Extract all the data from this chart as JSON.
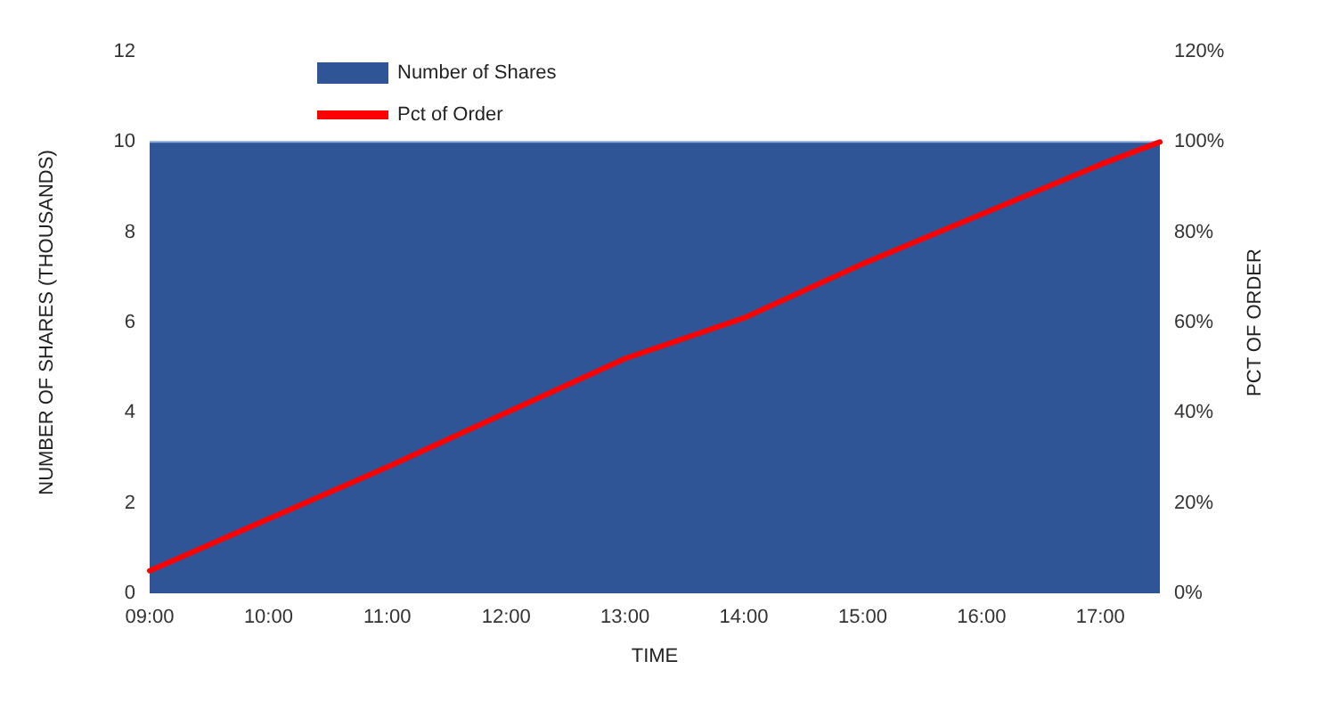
{
  "chart_data": {
    "type": "area",
    "xlabel": "TIME",
    "ylabel": "NUMBER OF SHARES (THOUSANDS)",
    "y2label": "PCT OF ORDER",
    "xlim": [
      9,
      17.5
    ],
    "xticks": [
      {
        "value": 9,
        "label": "09:00"
      },
      {
        "value": 10,
        "label": "10:00"
      },
      {
        "value": 11,
        "label": "11:00"
      },
      {
        "value": 12,
        "label": "12:00"
      },
      {
        "value": 13,
        "label": "13:00"
      },
      {
        "value": 14,
        "label": "14:00"
      },
      {
        "value": 15,
        "label": "15:00"
      },
      {
        "value": 16,
        "label": "16:00"
      },
      {
        "value": 17,
        "label": "17:00"
      }
    ],
    "ylim": [
      0,
      12
    ],
    "yticks": [
      0,
      2,
      4,
      6,
      8,
      10,
      12
    ],
    "y2lim": [
      0,
      120
    ],
    "y2ticks": [
      {
        "value": 0,
        "label": "0%"
      },
      {
        "value": 20,
        "label": "20%"
      },
      {
        "value": 40,
        "label": "40%"
      },
      {
        "value": 60,
        "label": "60%"
      },
      {
        "value": 80,
        "label": "80%"
      },
      {
        "value": 100,
        "label": "100%"
      },
      {
        "value": 120,
        "label": "120%"
      }
    ],
    "series": [
      {
        "name": "Number of Shares",
        "color": "#2f5597",
        "x": [
          9,
          17.5
        ],
        "values": [
          10,
          10
        ]
      },
      {
        "name": "Pct of Order",
        "type": "line",
        "axis": "y2",
        "color": "#ff0000",
        "x": [
          9,
          10,
          11,
          12,
          13,
          14,
          15,
          16,
          17,
          17.5
        ],
        "values": [
          5,
          16.5,
          28,
          40,
          52,
          61,
          73,
          84,
          95,
          100
        ]
      }
    ],
    "legend": "top",
    "grid": false,
    "marker": "none",
    "line_style": "solid"
  }
}
